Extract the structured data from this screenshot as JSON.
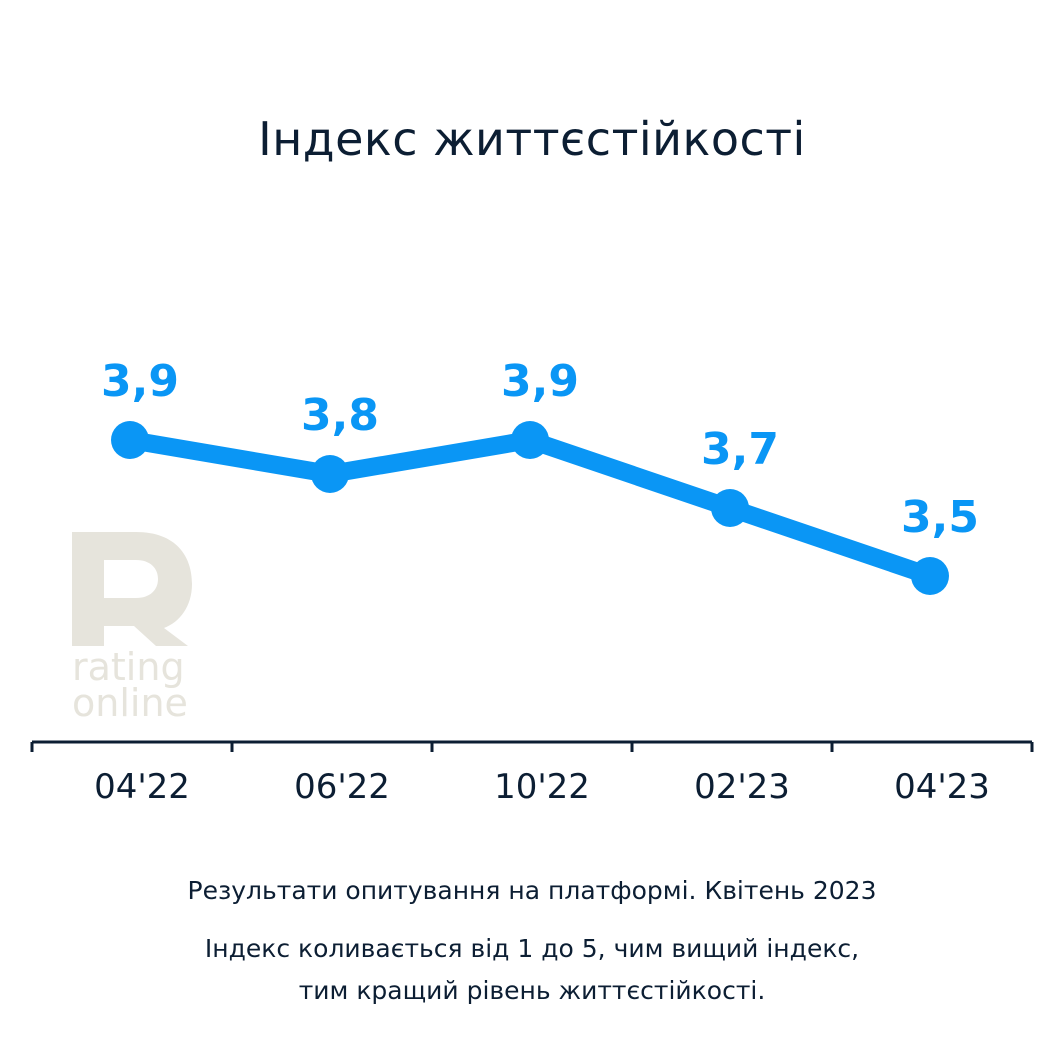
{
  "chart_data": {
    "type": "line",
    "title": "Індекс життєстійкості",
    "categories": [
      "04'22",
      "06'22",
      "10'22",
      "02'23",
      "04'23"
    ],
    "series": [
      {
        "values": [
          3.9,
          3.8,
          3.9,
          3.7,
          3.5
        ],
        "labels": [
          "3,9",
          "3,8",
          "3,9",
          "3,7",
          "3,5"
        ]
      }
    ],
    "grid": false,
    "colors": {
      "line": "#0a96f5",
      "axis": "#0c1e33",
      "text": "#0c1e33"
    }
  },
  "logo": {
    "line1": "rating",
    "line2": "online",
    "color": "#e6e4dc"
  },
  "footnotes": {
    "line1": "Результати опитування на платформі. Квітень 2023",
    "line2": "Індекс коливається від 1 до 5, чим вищий індекс,",
    "line3": "тим кращий рівень життєстійкості."
  }
}
